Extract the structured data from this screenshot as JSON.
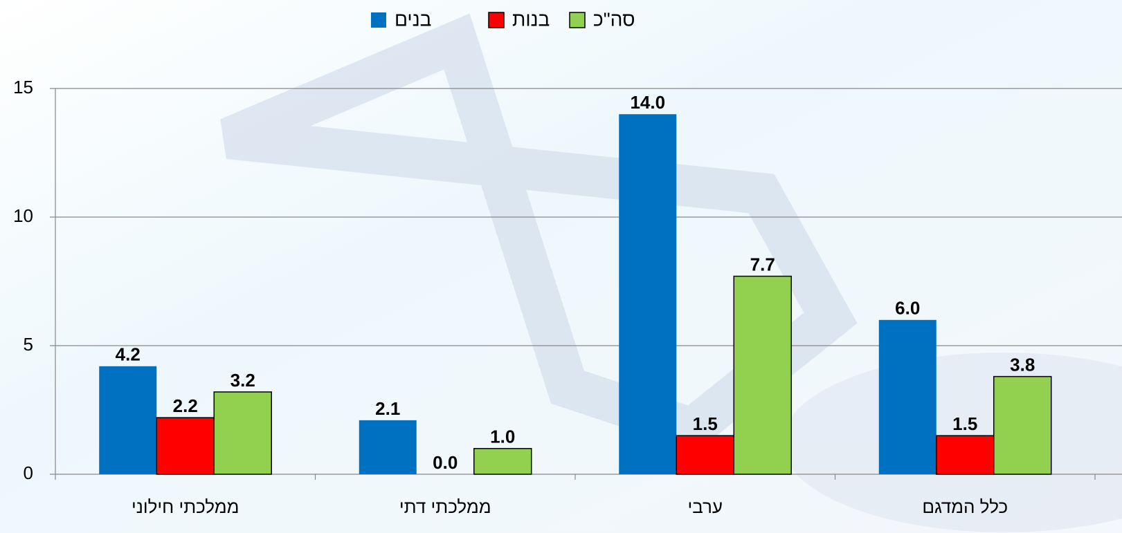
{
  "chart_data": {
    "type": "bar",
    "categories": [
      "ממלכתי חילוני",
      "ממלכתי דתי",
      "ערבי",
      "כלל המדגם"
    ],
    "series": [
      {
        "name": "בנים",
        "color": "#0070c0",
        "values": [
          4.2,
          2.1,
          14,
          6
        ],
        "value_labels": [
          "4.2",
          "2.1",
          "14.0",
          "6.0"
        ]
      },
      {
        "name": "בנות",
        "color": "#ff0000",
        "values": [
          2.2,
          0,
          1.5,
          1.5
        ],
        "value_labels": [
          "2.2",
          "0.0",
          "1.5",
          "1.5"
        ]
      },
      {
        "name": "סה\"כ",
        "color": "#92d050",
        "values": [
          3.2,
          1,
          7.7,
          3.8
        ],
        "value_labels": [
          "3.2",
          "1.0",
          "7.7",
          "3.8"
        ]
      }
    ],
    "ylim": [
      0,
      15
    ],
    "yticks": [
      0,
      5,
      10,
      15
    ],
    "grid": true,
    "legend": "top"
  }
}
